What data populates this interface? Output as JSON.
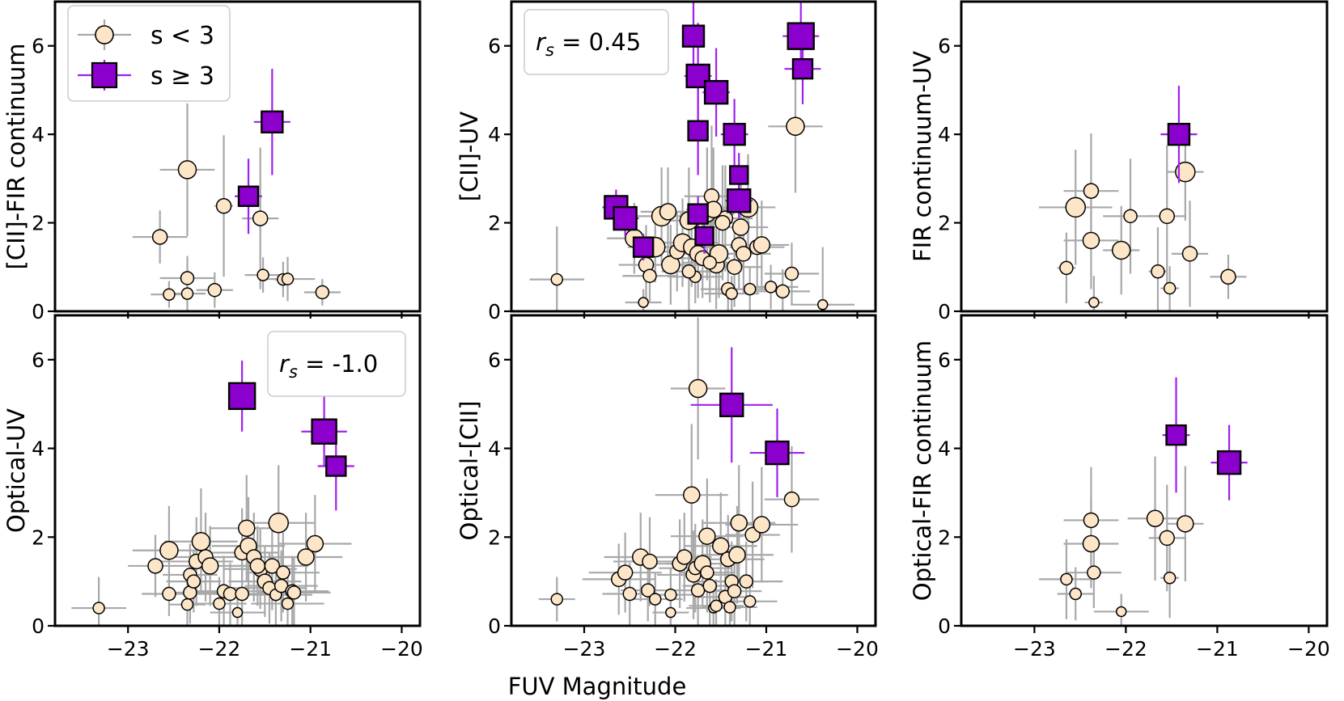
{
  "figure": {
    "x_label": "FUV Magnitude",
    "x_ticks": [
      -23,
      -22,
      -21,
      -20
    ],
    "x_tick_labels": [
      "−23",
      "−22",
      "−21",
      "−20"
    ],
    "y_ticks": [
      0,
      2,
      4,
      6
    ],
    "y_tick_labels": [
      "0",
      "2",
      "4",
      "6"
    ],
    "colors": {
      "low_fill": "#fde5c7",
      "high_fill": "#8b00cc",
      "low_err": "#a8a8a8",
      "high_err": "#a020f0"
    }
  },
  "legend": {
    "low_label": "s < 3",
    "high_label": "s ≥ 3"
  },
  "chart_data": [
    {
      "type": "scatter",
      "ylabel": "[CII]-FIR continuum",
      "xlim": [
        -23.8,
        -19.8
      ],
      "ylim": [
        0,
        7
      ],
      "annotation": "",
      "series": [
        {
          "name": "s < 3",
          "marker": "circle",
          "x": [
            -22.65,
            -22.35,
            -22.55,
            -22.35,
            -22.35,
            -21.95,
            -22.05,
            -21.55,
            -21.52,
            -21.3,
            -21.25,
            -20.87
          ],
          "y": [
            1.68,
            3.2,
            0.38,
            0.4,
            0.75,
            2.38,
            0.48,
            2.1,
            0.82,
            0.72,
            0.73,
            0.43
          ],
          "size": [
            9,
            11,
            7,
            7,
            8,
            9,
            8,
            9,
            7,
            7,
            7,
            8
          ],
          "xerr": [
            0.3,
            0.3,
            0.2,
            0.2,
            0.3,
            0.1,
            0.2,
            0.2,
            0.2,
            0.1,
            0.3,
            0.2
          ],
          "yerr": [
            0.6,
            1.5,
            0.3,
            0.4,
            0.5,
            1.6,
            0.4,
            1.6,
            0.4,
            0.4,
            0.5,
            0.3
          ]
        },
        {
          "name": "s ≥ 3",
          "marker": "square",
          "x": [
            -21.68,
            -21.42
          ],
          "y": [
            2.6,
            4.28
          ],
          "size": [
            12,
            13
          ],
          "xerr": [
            0.15,
            0.2
          ],
          "yerr": [
            0.85,
            1.2
          ]
        }
      ]
    },
    {
      "type": "scatter",
      "ylabel": "[CII]-UV",
      "xlim": [
        -23.8,
        -19.8
      ],
      "ylim": [
        0,
        7
      ],
      "annotation": "r_s = 0.45",
      "series": [
        {
          "name": "s < 3",
          "marker": "circle",
          "x": [
            -23.3,
            -22.45,
            -22.32,
            -22.35,
            -22.28,
            -22.22,
            -22.15,
            -22.08,
            -22.05,
            -21.98,
            -21.92,
            -21.85,
            -21.82,
            -21.78,
            -21.75,
            -21.7,
            -21.65,
            -21.6,
            -21.55,
            -21.52,
            -21.45,
            -21.42,
            -21.38,
            -21.35,
            -21.3,
            -21.28,
            -21.25,
            -21.2,
            -21.18,
            -21.1,
            -21.05,
            -20.95,
            -20.82,
            -20.72,
            -20.68,
            -20.38,
            -21.58,
            -21.48,
            -21.62,
            -21.85
          ],
          "y": [
            0.72,
            1.65,
            1.05,
            0.2,
            0.8,
            1.45,
            2.15,
            2.25,
            1.05,
            1.35,
            1.55,
            2.05,
            1.45,
            0.78,
            1.3,
            1.2,
            2.2,
            2.6,
            1.05,
            1.3,
            2.1,
            0.5,
            0.4,
            1.0,
            1.5,
            1.9,
            1.3,
            2.35,
            0.5,
            1.45,
            1.5,
            0.55,
            0.45,
            0.85,
            4.18,
            0.15,
            2.3,
            2.0,
            1.1,
            0.9
          ],
          "size": [
            7,
            11,
            9,
            6,
            8,
            12,
            12,
            10,
            11,
            9,
            11,
            11,
            10,
            7,
            10,
            9,
            10,
            9,
            10,
            11,
            9,
            8,
            7,
            9,
            9,
            10,
            9,
            12,
            7,
            9,
            10,
            7,
            8,
            8,
            11,
            6,
            10,
            9,
            8,
            8
          ],
          "xerr": [
            0.3,
            0.3,
            0.3,
            0.2,
            0.3,
            0.3,
            0.4,
            0.3,
            0.4,
            0.3,
            0.4,
            0.3,
            0.3,
            0.3,
            0.3,
            0.3,
            0.3,
            0.3,
            0.3,
            0.3,
            0.3,
            0.3,
            0.3,
            0.3,
            0.3,
            0.3,
            0.3,
            0.3,
            0.3,
            0.3,
            0.3,
            0.3,
            0.3,
            0.3,
            0.3,
            0.35,
            0.3,
            0.3,
            0.3,
            0.3
          ],
          "yerr": [
            1.2,
            0.8,
            0.9,
            0.3,
            0.6,
            0.8,
            1.1,
            1.0,
            0.9,
            0.9,
            1.0,
            1.2,
            0.9,
            0.6,
            1.0,
            0.9,
            1.5,
            1.6,
            1.0,
            1.0,
            1.2,
            0.5,
            0.4,
            0.9,
            1.0,
            1.0,
            0.9,
            1.2,
            0.5,
            0.9,
            1.0,
            0.5,
            0.5,
            0.7,
            1.5,
            1.3,
            1.4,
            1.3,
            0.9,
            1.0
          ]
        },
        {
          "name": "s ≥ 3",
          "marker": "square",
          "x": [
            -22.65,
            -22.55,
            -22.35,
            -21.8,
            -21.75,
            -21.75,
            -21.55,
            -21.35,
            -21.3,
            -21.3,
            -21.75,
            -21.68,
            -20.62,
            -20.6
          ],
          "y": [
            2.35,
            2.1,
            1.45,
            6.22,
            5.32,
            4.08,
            4.95,
            4.0,
            3.08,
            2.5,
            2.2,
            1.7,
            6.22,
            5.48
          ],
          "size": [
            14,
            14,
            12,
            13,
            14,
            12,
            14,
            13,
            11,
            14,
            12,
            11,
            16,
            12
          ],
          "xerr": [
            0.15,
            0.15,
            0.1,
            0.1,
            0.15,
            0.1,
            0.15,
            0.15,
            0.1,
            0.15,
            0.1,
            0.1,
            0.2,
            0.2
          ],
          "yerr": [
            0.4,
            0.4,
            0.3,
            0.8,
            1.2,
            1.0,
            1.0,
            0.8,
            0.5,
            0.4,
            0.4,
            0.4,
            0.8,
            0.8
          ]
        }
      ]
    },
    {
      "type": "scatter",
      "ylabel": "FIR continuum-UV",
      "xlim": [
        -23.8,
        -19.8
      ],
      "ylim": [
        0,
        7
      ],
      "annotation": "",
      "series": [
        {
          "name": "s < 3",
          "marker": "circle",
          "x": [
            -22.65,
            -22.55,
            -22.38,
            -22.38,
            -22.35,
            -22.05,
            -21.95,
            -21.65,
            -21.55,
            -21.52,
            -21.35,
            -21.3,
            -20.88
          ],
          "y": [
            0.98,
            2.35,
            2.72,
            1.6,
            0.2,
            1.38,
            2.15,
            0.9,
            2.15,
            0.52,
            3.15,
            1.3,
            0.78
          ],
          "size": [
            8,
            12,
            9,
            10,
            6,
            11,
            8,
            8,
            9,
            7,
            12,
            9,
            9
          ],
          "xerr": [
            0.1,
            0.4,
            0.3,
            0.3,
            0.1,
            0.2,
            0.3,
            0.1,
            0.2,
            0.1,
            0.2,
            0.2,
            0.2
          ],
          "yerr": [
            0.8,
            1.3,
            1.3,
            1.1,
            0.6,
            1.0,
            1.3,
            1.0,
            1.6,
            0.5,
            1.1,
            1.2,
            0.5
          ]
        },
        {
          "name": "s ≥ 3",
          "marker": "square",
          "x": [
            -21.42
          ],
          "y": [
            4.0
          ],
          "size": [
            13
          ],
          "xerr": [
            0.2
          ],
          "yerr": [
            1.1
          ]
        }
      ]
    },
    {
      "type": "scatter",
      "ylabel": "Optical-UV",
      "xlim": [
        -23.8,
        -19.8
      ],
      "ylim": [
        0,
        7
      ],
      "annotation": "r_s = -1.0",
      "series": [
        {
          "name": "s < 3",
          "marker": "circle",
          "x": [
            -23.32,
            -22.7,
            -22.55,
            -22.55,
            -22.32,
            -22.35,
            -22.32,
            -22.28,
            -22.25,
            -22.2,
            -22.15,
            -22.1,
            -22.0,
            -21.95,
            -21.88,
            -21.8,
            -21.75,
            -21.7,
            -21.68,
            -21.62,
            -21.55,
            -21.5,
            -21.45,
            -21.42,
            -21.38,
            -21.35,
            -21.32,
            -21.3,
            -21.25,
            -21.2,
            -21.18,
            -21.05,
            -20.95,
            -21.75,
            -21.58
          ],
          "y": [
            0.4,
            1.35,
            1.7,
            0.72,
            1.15,
            0.48,
            0.75,
            1.0,
            1.45,
            1.9,
            1.55,
            1.35,
            0.5,
            0.78,
            0.72,
            0.3,
            1.65,
            2.2,
            1.8,
            1.55,
            1.28,
            1.0,
            0.85,
            1.35,
            0.7,
            2.32,
            0.9,
            1.2,
            0.5,
            0.78,
            0.75,
            1.55,
            1.85,
            0.72,
            1.35
          ],
          "size": [
            7,
            9,
            11,
            8,
            8,
            7,
            8,
            8,
            9,
            11,
            9,
            10,
            7,
            8,
            8,
            6,
            9,
            10,
            10,
            9,
            9,
            9,
            8,
            9,
            7,
            12,
            8,
            8,
            7,
            8,
            8,
            10,
            10,
            8,
            9
          ],
          "xerr": [
            0.3,
            0.3,
            0.4,
            0.3,
            0.3,
            0.2,
            0.3,
            0.3,
            0.4,
            0.4,
            0.4,
            0.4,
            0.3,
            0.4,
            0.4,
            0.3,
            0.4,
            0.4,
            0.4,
            0.4,
            0.4,
            0.4,
            0.4,
            0.4,
            0.4,
            0.4,
            0.4,
            0.4,
            0.4,
            0.4,
            0.4,
            0.4,
            0.4,
            0.3,
            0.4
          ],
          "yerr": [
            0.7,
            0.7,
            1.0,
            0.5,
            0.7,
            0.5,
            0.7,
            0.7,
            1.0,
            1.2,
            1.0,
            0.9,
            0.6,
            0.8,
            0.7,
            0.4,
            1.0,
            1.2,
            1.1,
            1.0,
            0.9,
            0.8,
            0.8,
            1.0,
            0.7,
            1.3,
            0.8,
            0.9,
            0.6,
            0.8,
            0.8,
            1.0,
            1.1,
            0.7,
            0.9
          ]
        },
        {
          "name": "s ≥ 3",
          "marker": "square",
          "x": [
            -21.75,
            -20.85,
            -20.72
          ],
          "y": [
            5.18,
            4.38,
            3.6
          ],
          "size": [
            16,
            15,
            12
          ],
          "xerr": [
            0.15,
            0.25,
            0.2
          ],
          "yerr": [
            0.8,
            0.8,
            1.0
          ]
        }
      ]
    },
    {
      "type": "scatter",
      "ylabel": "Optical-[CII]",
      "xlim": [
        -23.8,
        -19.8
      ],
      "ylim": [
        0,
        7
      ],
      "annotation": "",
      "series": [
        {
          "name": "s < 3",
          "marker": "circle",
          "x": [
            -23.3,
            -22.62,
            -22.55,
            -22.5,
            -22.38,
            -22.3,
            -22.28,
            -22.22,
            -22.05,
            -22.05,
            -21.95,
            -21.9,
            -21.82,
            -21.8,
            -21.78,
            -21.75,
            -21.7,
            -21.65,
            -21.62,
            -21.58,
            -21.55,
            -21.5,
            -21.45,
            -21.42,
            -21.4,
            -21.38,
            -21.35,
            -21.32,
            -21.3,
            -21.22,
            -21.18,
            -21.15,
            -21.05,
            -20.72,
            -21.75,
            -21.65
          ],
          "y": [
            0.6,
            1.05,
            1.2,
            0.72,
            1.55,
            0.8,
            1.45,
            0.6,
            0.7,
            0.3,
            1.4,
            1.55,
            2.95,
            1.15,
            1.3,
            0.8,
            1.4,
            2.02,
            0.9,
            0.4,
            0.45,
            1.8,
            0.65,
            1.5,
            0.42,
            1.0,
            0.78,
            1.6,
            2.32,
            1.0,
            0.55,
            2.05,
            2.28,
            2.85,
            5.35,
            1.2
          ],
          "size": [
            7,
            9,
            9,
            8,
            10,
            8,
            9,
            7,
            7,
            6,
            9,
            9,
            10,
            9,
            8,
            8,
            10,
            10,
            8,
            6,
            7,
            10,
            8,
            9,
            7,
            8,
            8,
            10,
            10,
            8,
            7,
            9,
            10,
            9,
            11,
            8
          ],
          "xerr": [
            0.2,
            0.4,
            0.4,
            0.3,
            0.4,
            0.3,
            0.4,
            0.3,
            0.3,
            0.2,
            0.4,
            0.3,
            0.4,
            0.4,
            0.4,
            0.3,
            0.4,
            0.4,
            0.3,
            0.3,
            0.3,
            0.4,
            0.3,
            0.4,
            0.3,
            0.4,
            0.3,
            0.4,
            0.4,
            0.4,
            0.3,
            0.3,
            0.4,
            0.3,
            0.3,
            0.3
          ],
          "yerr": [
            0.5,
            0.8,
            0.9,
            0.7,
            1.0,
            0.7,
            1.0,
            0.6,
            0.6,
            0.4,
            1.0,
            1.0,
            1.6,
            1.0,
            1.0,
            0.8,
            1.0,
            1.3,
            0.9,
            0.5,
            0.6,
            1.2,
            0.7,
            1.0,
            0.5,
            0.9,
            0.8,
            1.1,
            1.3,
            0.9,
            0.6,
            1.2,
            1.3,
            1.2,
            1.6,
            0.9
          ]
        },
        {
          "name": "s ≥ 3",
          "marker": "square",
          "x": [
            -21.38,
            -20.88
          ],
          "y": [
            4.98,
            3.9
          ],
          "size": [
            14,
            14
          ],
          "xerr": [
            0.45,
            0.3
          ],
          "yerr": [
            1.3,
            1.0
          ]
        }
      ]
    },
    {
      "type": "scatter",
      "ylabel": "Optical-FIR continuum",
      "xlim": [
        -23.8,
        -19.8
      ],
      "ylim": [
        0,
        7
      ],
      "annotation": "",
      "series": [
        {
          "name": "s < 3",
          "marker": "circle",
          "x": [
            -22.65,
            -22.55,
            -22.38,
            -22.38,
            -22.35,
            -22.05,
            -21.68,
            -21.55,
            -21.52,
            -21.35
          ],
          "y": [
            1.05,
            0.72,
            2.38,
            1.85,
            1.2,
            0.32,
            2.42,
            1.98,
            1.08,
            2.3
          ],
          "size": [
            7,
            7,
            9,
            10,
            8,
            6,
            10,
            9,
            7,
            10
          ],
          "xerr": [
            0.3,
            0.2,
            0.3,
            0.3,
            0.3,
            0.3,
            0.3,
            0.2,
            0.1,
            0.2
          ],
          "yerr": [
            0.9,
            0.6,
            1.2,
            1.0,
            0.8,
            0.4,
            1.4,
            1.2,
            0.9,
            1.3
          ]
        },
        {
          "name": "s ≥ 3",
          "marker": "square",
          "x": [
            -21.45,
            -20.87
          ],
          "y": [
            4.3,
            3.68
          ],
          "size": [
            12,
            14
          ],
          "xerr": [
            0.15,
            0.2
          ],
          "yerr": [
            1.3,
            0.85
          ]
        }
      ]
    }
  ]
}
